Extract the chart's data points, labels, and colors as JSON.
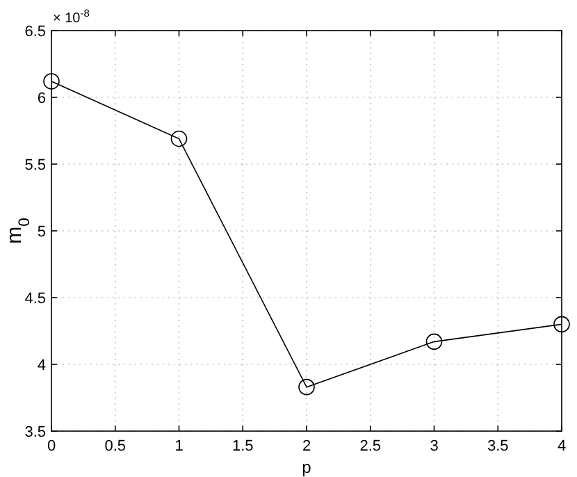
{
  "chart_data": {
    "type": "line",
    "xlabel": "p",
    "ylabel": "m$_{0}$",
    "annotations": [
      "× 10$^{-8}$"
    ],
    "x": [
      0,
      1,
      2,
      3,
      4
    ],
    "series": [
      {
        "color": "#000000",
        "values": [
          6.12,
          5.69,
          3.83,
          4.17,
          4.3
        ]
      }
    ],
    "xlim": [
      0,
      4
    ],
    "xticks": [
      0,
      0.5,
      1,
      1.5,
      2,
      2.5,
      3,
      3.5,
      4
    ],
    "ylim": [
      3.5,
      6.5
    ],
    "yticks": [
      3.5,
      4,
      4.5,
      5,
      5.5,
      6,
      6.5
    ],
    "grid": true,
    "marker": "circle",
    "line_style": "solid"
  }
}
